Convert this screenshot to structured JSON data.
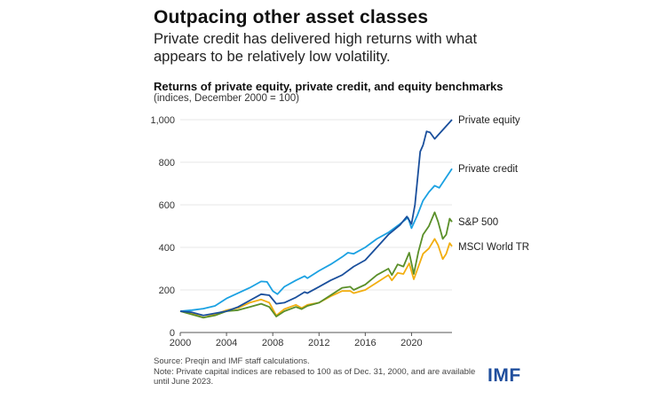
{
  "header": {
    "title": "Outpacing other asset classes",
    "subtitle": "Private credit has delivered high returns with what appears to be relatively low volatility."
  },
  "footer": {
    "source": "Source: Preqin and IMF staff calculations.",
    "note": "Note: Private capital indices are rebased to 100 as of Dec. 31, 2000, and are available until June 2023.",
    "logo": "IMF",
    "logo_color": "#1f4e9d"
  },
  "chart_data": {
    "type": "line",
    "title": "Returns of private equity, private credit, and equity benchmarks",
    "subtitle": "(indices, December 2000 = 100)",
    "xlabel": "",
    "ylabel": "",
    "xlim": [
      2000,
      2023.5
    ],
    "ylim": [
      0,
      1000
    ],
    "x_ticks": [
      2000,
      2004,
      2008,
      2012,
      2016,
      2020
    ],
    "x_tick_labels": [
      "2000",
      "2004",
      "2008",
      "2012",
      "2016",
      "2020"
    ],
    "y_ticks": [
      0,
      200,
      400,
      600,
      800,
      1000
    ],
    "y_tick_labels": [
      "0",
      "200",
      "400",
      "600",
      "800",
      "1,000"
    ],
    "grid": true,
    "legend": "right-end-labels",
    "series": [
      {
        "name": "Private equity",
        "color": "#1a4f9c",
        "x": [
          2000,
          2001,
          2002,
          2003,
          2004,
          2005,
          2006,
          2007,
          2007.7,
          2008.3,
          2009,
          2010,
          2010.75,
          2011,
          2012,
          2013,
          2014,
          2015,
          2016,
          2017,
          2018,
          2019,
          2019.6,
          2020,
          2020.3,
          2020.75,
          2021,
          2021.3,
          2021.6,
          2022,
          2023.5
        ],
        "values": [
          100,
          95,
          80,
          90,
          100,
          120,
          150,
          180,
          175,
          135,
          140,
          165,
          190,
          185,
          215,
          245,
          270,
          310,
          340,
          400,
          460,
          505,
          545,
          510,
          600,
          850,
          880,
          945,
          940,
          910,
          1000
        ]
      },
      {
        "name": "Private credit",
        "color": "#1ba1e2",
        "x": [
          2000,
          2001,
          2002,
          2003,
          2004,
          2005,
          2006,
          2007,
          2007.5,
          2008,
          2008.4,
          2009,
          2010,
          2010.75,
          2011,
          2012,
          2013,
          2014,
          2014.5,
          2015,
          2016,
          2017,
          2018,
          2019,
          2019.7,
          2020,
          2020.5,
          2021,
          2021.5,
          2022,
          2022.4,
          2023.5
        ],
        "values": [
          100,
          105,
          112,
          125,
          160,
          185,
          210,
          240,
          238,
          195,
          180,
          215,
          245,
          265,
          255,
          290,
          320,
          355,
          375,
          370,
          400,
          440,
          470,
          510,
          540,
          490,
          550,
          620,
          660,
          690,
          680,
          770
        ]
      },
      {
        "name": "S&P 500",
        "color": "#5a8f29",
        "x": [
          2000,
          2001,
          2002,
          2003,
          2004,
          2005,
          2006,
          2007,
          2007.7,
          2008.3,
          2009,
          2010,
          2010.5,
          2011,
          2012,
          2013,
          2014,
          2014.7,
          2015,
          2016,
          2017,
          2018,
          2018.3,
          2018.8,
          2019.3,
          2019.8,
          2020.2,
          2020.6,
          2021,
          2021.5,
          2022,
          2022.3,
          2022.7,
          2023,
          2023.3,
          2023.5
        ],
        "values": [
          100,
          85,
          70,
          80,
          100,
          105,
          120,
          135,
          120,
          75,
          100,
          120,
          110,
          125,
          140,
          175,
          210,
          215,
          200,
          225,
          270,
          300,
          270,
          320,
          310,
          375,
          275,
          380,
          460,
          500,
          565,
          520,
          440,
          460,
          535,
          520
        ]
      },
      {
        "name": "MSCI World TR",
        "color": "#f2ae0f",
        "x": [
          2000,
          2001,
          2002,
          2003,
          2004,
          2005,
          2006,
          2007,
          2007.7,
          2008.3,
          2009,
          2010,
          2010.5,
          2011,
          2012,
          2013,
          2014,
          2014.7,
          2015,
          2016,
          2017,
          2018,
          2018.3,
          2018.8,
          2019.3,
          2019.8,
          2020.2,
          2020.6,
          2021,
          2021.5,
          2022,
          2022.3,
          2022.7,
          2023,
          2023.3,
          2023.5
        ],
        "values": [
          100,
          90,
          70,
          85,
          105,
          115,
          140,
          155,
          140,
          80,
          110,
          130,
          115,
          130,
          140,
          170,
          195,
          195,
          185,
          200,
          235,
          270,
          245,
          280,
          275,
          325,
          250,
          310,
          370,
          395,
          440,
          410,
          345,
          370,
          420,
          405
        ]
      }
    ]
  }
}
